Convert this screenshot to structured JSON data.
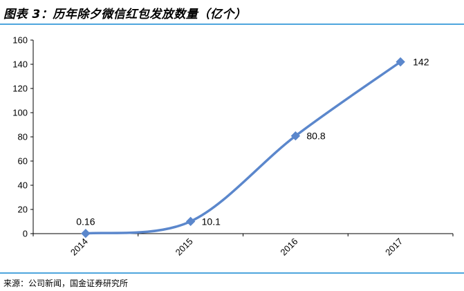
{
  "header": {
    "title": "图表 3：历年除夕微信红包发放数量（亿个）"
  },
  "footer": {
    "source": "来源：公司新闻，国金证券研究所"
  },
  "colors": {
    "accent_rule": "#4ea5dd",
    "series": "#5b87cc",
    "axis": "#000000"
  },
  "chart_data": {
    "type": "line",
    "title": "",
    "xlabel": "",
    "ylabel": "",
    "categories": [
      "2014",
      "2015",
      "2016",
      "2017"
    ],
    "series": [
      {
        "values": [
          0.16,
          10.1,
          80.8,
          142
        ]
      }
    ],
    "data_labels": [
      "0.16",
      "10.1",
      "80.8",
      "142"
    ],
    "ylim": [
      0,
      160
    ],
    "yticks": [
      0,
      20,
      40,
      60,
      80,
      100,
      120,
      140,
      160
    ],
    "grid": false,
    "smooth": true,
    "marker": "diamond",
    "legend": "none"
  }
}
